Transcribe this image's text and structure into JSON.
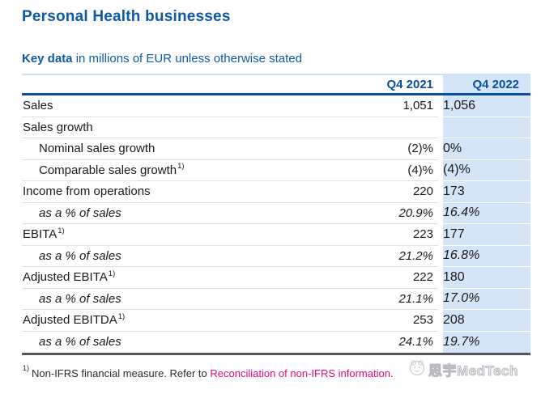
{
  "title": "Personal Health businesses",
  "subtitle": {
    "bold": "Key data",
    "rest": " in millions of EUR unless otherwise stated"
  },
  "table": {
    "columns": [
      "Q4 2021",
      "Q4 2022"
    ],
    "rows": [
      {
        "label": "Sales",
        "sup": "",
        "indent": false,
        "italic": false,
        "q4_2021": "1,051",
        "q4_2022": "1,056"
      },
      {
        "label": "Sales growth",
        "sup": "",
        "indent": false,
        "italic": false,
        "q4_2021": "",
        "q4_2022": ""
      },
      {
        "label": "Nominal sales growth",
        "sup": "",
        "indent": true,
        "italic": false,
        "q4_2021": "(2)%",
        "q4_2022": "0%"
      },
      {
        "label": "Comparable sales growth",
        "sup": "1)",
        "indent": true,
        "italic": false,
        "q4_2021": "(4)%",
        "q4_2022": "(4)%"
      },
      {
        "label": "Income from operations",
        "sup": "",
        "indent": false,
        "italic": false,
        "q4_2021": "220",
        "q4_2022": "173"
      },
      {
        "label": "as a % of sales",
        "sup": "",
        "indent": true,
        "italic": true,
        "q4_2021": "20.9%",
        "q4_2022": "16.4%"
      },
      {
        "label": "EBITA",
        "sup": "1)",
        "indent": false,
        "italic": false,
        "q4_2021": "223",
        "q4_2022": "177"
      },
      {
        "label": "as a % of sales",
        "sup": "",
        "indent": true,
        "italic": true,
        "q4_2021": "21.2%",
        "q4_2022": "16.8%"
      },
      {
        "label": "Adjusted EBITA",
        "sup": "1)",
        "indent": false,
        "italic": false,
        "q4_2021": "222",
        "q4_2022": "180"
      },
      {
        "label": "as a % of sales",
        "sup": "",
        "indent": true,
        "italic": true,
        "q4_2021": "21.1%",
        "q4_2022": "17.0%"
      },
      {
        "label": "Adjusted EBITDA",
        "sup": "1)",
        "indent": false,
        "italic": false,
        "q4_2021": "253",
        "q4_2022": "208"
      },
      {
        "label": "as a % of sales",
        "sup": "",
        "indent": true,
        "italic": true,
        "q4_2021": "24.1%",
        "q4_2022": "19.7%"
      }
    ]
  },
  "footnote": {
    "marker": "1)",
    "text": "Non-IFRS financial measure. Refer to ",
    "link_text": "Reconciliation of non-IFRS information",
    "suffix": "."
  },
  "watermark": {
    "text": "思宇MedTech"
  },
  "colors": {
    "accent_blue": "#0c5aa7",
    "header_blue": "#0a4f9e",
    "row_separator": "#cfe2f4",
    "highlight_column_bg": "#d4e5f7",
    "table_bottom_border": "#54565e",
    "link_pink": "#e5097f",
    "text": "#1a1a1a"
  }
}
